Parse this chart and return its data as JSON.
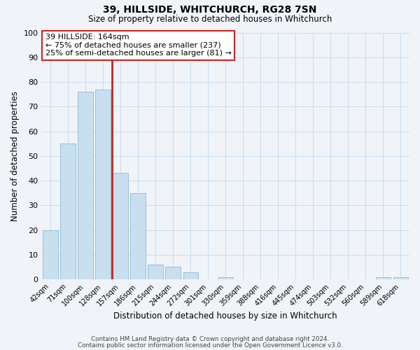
{
  "title": "39, HILLSIDE, WHITCHURCH, RG28 7SN",
  "subtitle": "Size of property relative to detached houses in Whitchurch",
  "xlabel": "Distribution of detached houses by size in Whitchurch",
  "ylabel": "Number of detached properties",
  "bar_labels": [
    "42sqm",
    "71sqm",
    "100sqm",
    "128sqm",
    "157sqm",
    "186sqm",
    "215sqm",
    "244sqm",
    "272sqm",
    "301sqm",
    "330sqm",
    "359sqm",
    "388sqm",
    "416sqm",
    "445sqm",
    "474sqm",
    "503sqm",
    "532sqm",
    "560sqm",
    "589sqm",
    "618sqm"
  ],
  "bar_values": [
    20,
    55,
    76,
    77,
    43,
    35,
    6,
    5,
    3,
    0,
    1,
    0,
    0,
    0,
    0,
    0,
    0,
    0,
    0,
    1,
    1
  ],
  "bar_color": "#c8dff0",
  "bar_edge_color": "#8ab8d8",
  "vline_index": 4,
  "vline_color": "#cc2222",
  "ylim": [
    0,
    100
  ],
  "annotation_title": "39 HILLSIDE: 164sqm",
  "annotation_line1": "← 75% of detached houses are smaller (237)",
  "annotation_line2": "25% of semi-detached houses are larger (81) →",
  "footer1": "Contains HM Land Registry data © Crown copyright and database right 2024.",
  "footer2": "Contains public sector information licensed under the Open Government Licence v3.0.",
  "background_color": "#f0f4f8",
  "grid_color": "#c8ddf0",
  "title_fontsize": 10,
  "subtitle_fontsize": 8.5
}
